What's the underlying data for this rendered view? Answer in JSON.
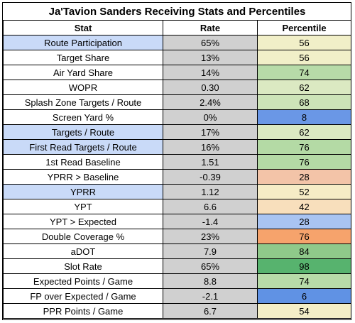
{
  "title": "Ja'Tavion Sanders Receiving Stats and Percentiles",
  "headers": {
    "stat": "Stat",
    "rate": "Rate",
    "percentile": "Percentile"
  },
  "rows": [
    {
      "stat": "Route Participation",
      "rate": "65%",
      "percentile": "56",
      "stat_bg": "#c9daf8",
      "pct_bg": "#f1efc8"
    },
    {
      "stat": "Target Share",
      "rate": "13%",
      "percentile": "56",
      "stat_bg": "#ffffff",
      "pct_bg": "#f1efc8"
    },
    {
      "stat": "Air Yard Share",
      "rate": "14%",
      "percentile": "74",
      "stat_bg": "#ffffff",
      "pct_bg": "#b7dba8"
    },
    {
      "stat": "WOPR",
      "rate": "0.30",
      "percentile": "62",
      "stat_bg": "#ffffff",
      "pct_bg": "#dbe9c2"
    },
    {
      "stat": "Splash Zone Targets / Route",
      "rate": "2.4%",
      "percentile": "68",
      "stat_bg": "#ffffff",
      "pct_bg": "#cde4b8"
    },
    {
      "stat": "Screen Yard %",
      "rate": "0%",
      "percentile": "8",
      "stat_bg": "#ffffff",
      "pct_bg": "#6a97e6"
    },
    {
      "stat": "Targets / Route",
      "rate": "17%",
      "percentile": "62",
      "stat_bg": "#c9daf8",
      "pct_bg": "#dbe9c2"
    },
    {
      "stat": "First Read Targets / Route",
      "rate": "16%",
      "percentile": "76",
      "stat_bg": "#c9daf8",
      "pct_bg": "#b4daa5"
    },
    {
      "stat": "1st Read Baseline",
      "rate": "1.51",
      "percentile": "76",
      "stat_bg": "#ffffff",
      "pct_bg": "#b4daa5"
    },
    {
      "stat": "YPRR > Baseline",
      "rate": "-0.39",
      "percentile": "28",
      "stat_bg": "#ffffff",
      "pct_bg": "#f3c4a8"
    },
    {
      "stat": "YPRR",
      "rate": "1.12",
      "percentile": "52",
      "stat_bg": "#c9daf8",
      "pct_bg": "#f6ecc6"
    },
    {
      "stat": "YPT",
      "rate": "6.6",
      "percentile": "42",
      "stat_bg": "#ffffff",
      "pct_bg": "#f8dfbc"
    },
    {
      "stat": "YPT > Expected",
      "rate": "-1.4",
      "percentile": "28",
      "stat_bg": "#ffffff",
      "pct_bg": "#a9c4f2"
    },
    {
      "stat": "Double Coverage %",
      "rate": "23%",
      "percentile": "76",
      "stat_bg": "#ffffff",
      "pct_bg": "#f6a36c"
    },
    {
      "stat": "aDOT",
      "rate": "7.9",
      "percentile": "84",
      "stat_bg": "#ffffff",
      "pct_bg": "#8fc98a"
    },
    {
      "stat": "Slot Rate",
      "rate": "65%",
      "percentile": "98",
      "stat_bg": "#ffffff",
      "pct_bg": "#57b36e"
    },
    {
      "stat": "Expected Points / Game",
      "rate": "8.8",
      "percentile": "74",
      "stat_bg": "#ffffff",
      "pct_bg": "#b7dba8"
    },
    {
      "stat": "FP over Expected / Game",
      "rate": "-2.1",
      "percentile": "6",
      "stat_bg": "#ffffff",
      "pct_bg": "#6092e4"
    },
    {
      "stat": "PPR Points / Game",
      "rate": "6.7",
      "percentile": "54",
      "stat_bg": "#ffffff",
      "pct_bg": "#f3eec7"
    }
  ]
}
